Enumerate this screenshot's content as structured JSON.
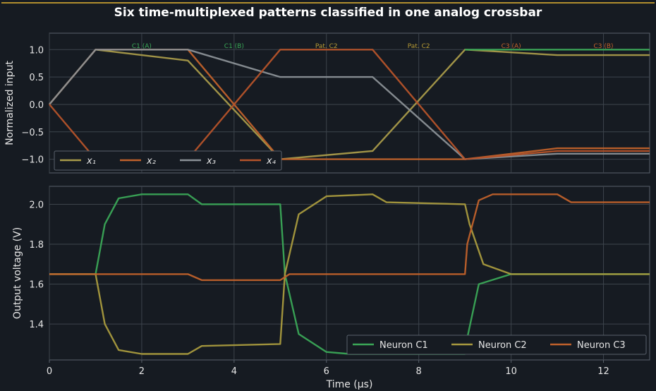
{
  "title": "Six time-multiplexed patterns classified in one analog crossbar",
  "chart_data": [
    {
      "type": "line",
      "ylabel": "Normalized input",
      "xlabel": "",
      "xlim": [
        0,
        13
      ],
      "ylim": [
        -1.25,
        1.3
      ],
      "yticks": [
        -1.0,
        -0.5,
        0.0,
        0.5,
        1.0
      ],
      "ytick_labels": [
        "−1.0",
        "−0.5",
        "0.0",
        "0.5",
        "1.0"
      ],
      "grid": true,
      "legend_position": "lower-left",
      "segment_labels": [
        {
          "x": 2,
          "text": "C1 (A)",
          "color": "#3aa757"
        },
        {
          "x": 4,
          "text": "C1 (B)",
          "color": "#3aa757"
        },
        {
          "x": 6,
          "text": "Pat. C2",
          "color": "#b59a35"
        },
        {
          "x": 8,
          "text": "Pat. C2",
          "color": "#b59a35"
        },
        {
          "x": 10,
          "text": "C3 (A)",
          "color": "#c0612b"
        },
        {
          "x": 12,
          "text": "C3 (B)",
          "color": "#c0612b"
        }
      ],
      "series": [
        {
          "name": "x₁",
          "color": "#a89a4a",
          "x": [
            0,
            1,
            3,
            5,
            7,
            9,
            11,
            13
          ],
          "y": [
            0,
            1.0,
            0.8,
            -1.0,
            -0.85,
            1.0,
            0.9,
            0.9
          ]
        },
        {
          "name": "x₂",
          "color": "#c0612b",
          "x": [
            0,
            1,
            3,
            5,
            7,
            9,
            11,
            13
          ],
          "y": [
            0,
            1.0,
            1.0,
            -1.0,
            -1.0,
            -1.0,
            -0.8,
            -0.8
          ]
        },
        {
          "name": "x₃",
          "color": "#8a9096",
          "x": [
            0,
            1,
            3,
            5,
            7,
            9,
            11,
            13
          ],
          "y": [
            0,
            1.0,
            1.0,
            0.5,
            0.5,
            -1.0,
            -0.9,
            -0.9
          ]
        },
        {
          "name": "x₄",
          "color": "#b5532a",
          "x": [
            0,
            1,
            3,
            5,
            7,
            9,
            11,
            13
          ],
          "y": [
            0,
            -1.0,
            -1.0,
            1.0,
            1.0,
            -1.0,
            -0.85,
            -0.85
          ]
        },
        {
          "name": "",
          "color": "#3aa757",
          "x": [
            9,
            13
          ],
          "y": [
            1.0,
            1.0
          ]
        }
      ]
    },
    {
      "type": "line",
      "xlabel": "Time (μs)",
      "ylabel": "Output voltage (V)",
      "xlim": [
        0,
        13
      ],
      "ylim": [
        1.22,
        2.09
      ],
      "xticks": [
        0,
        2,
        4,
        6,
        8,
        10,
        12
      ],
      "yticks": [
        1.4,
        1.6,
        1.8,
        2.0
      ],
      "ytick_labels": [
        "1.4",
        "1.6",
        "1.8",
        "2.0"
      ],
      "grid": true,
      "legend_position": "lower-right",
      "series": [
        {
          "name": "Neuron C1",
          "color": "#3aa757",
          "x": [
            0,
            1,
            1.2,
            1.5,
            2,
            3,
            3.3,
            5,
            5.1,
            5.4,
            6,
            6.5,
            9,
            9.05,
            9.3,
            10,
            13
          ],
          "y": [
            1.65,
            1.65,
            1.9,
            2.03,
            2.05,
            2.05,
            2.0,
            2.0,
            1.65,
            1.35,
            1.26,
            1.25,
            1.25,
            1.33,
            1.6,
            1.65,
            1.65
          ]
        },
        {
          "name": "Neuron C2",
          "color": "#a89a3e",
          "x": [
            0,
            1,
            1.2,
            1.5,
            2,
            3,
            3.3,
            5,
            5.1,
            5.4,
            6,
            7,
            7.3,
            9,
            9.1,
            9.4,
            10,
            13
          ],
          "y": [
            1.65,
            1.65,
            1.4,
            1.27,
            1.25,
            1.25,
            1.29,
            1.3,
            1.65,
            1.95,
            2.04,
            2.05,
            2.01,
            2.0,
            1.9,
            1.7,
            1.65,
            1.65
          ]
        },
        {
          "name": "Neuron C3",
          "color": "#c0612b",
          "x": [
            0,
            3,
            3.3,
            5,
            5.2,
            9,
            9.05,
            9.3,
            9.6,
            11,
            11.3,
            13
          ],
          "y": [
            1.65,
            1.65,
            1.62,
            1.62,
            1.65,
            1.65,
            1.8,
            2.02,
            2.05,
            2.05,
            2.01,
            2.01
          ]
        }
      ]
    }
  ]
}
